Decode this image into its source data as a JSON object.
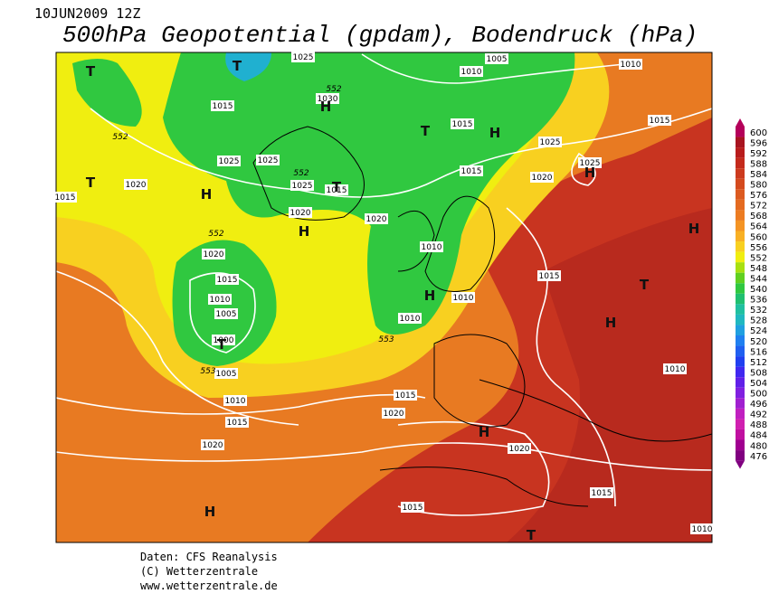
{
  "header": {
    "date": "10JUN2009 12Z",
    "title": "500hPa Geopotential (gpdam), Bodendruck (hPa)"
  },
  "colorbar": {
    "labels": [
      600,
      596,
      592,
      588,
      584,
      580,
      576,
      572,
      568,
      564,
      560,
      556,
      552,
      548,
      544,
      540,
      536,
      532,
      528,
      524,
      520,
      516,
      512,
      508,
      504,
      500,
      496,
      492,
      488,
      484,
      480,
      476
    ]
  },
  "map": {
    "pressure_labels": [
      1025,
      1005,
      1010,
      1010,
      1030,
      1015,
      1015,
      1015,
      1025,
      1025,
      1025,
      1025,
      1015,
      1020,
      1015,
      1020,
      1025,
      1015,
      1020,
      1020,
      1010,
      1020,
      1015,
      1015,
      1010,
      1010,
      1005,
      1010,
      1000,
      1005,
      1010,
      1015,
      1010,
      1020,
      1015,
      1020,
      1020,
      1015,
      1015,
      1010
    ],
    "contour_labels": [
      552,
      552,
      552,
      552,
      553,
      553
    ],
    "centers": [
      "T",
      "T",
      "H",
      "T",
      "H",
      "T",
      "H",
      "T",
      "H",
      "H",
      "H",
      "T",
      "H",
      "H",
      "T",
      "H",
      "H",
      "T"
    ]
  },
  "footer": {
    "lines": [
      "Daten: CFS Reanalysis",
      "(C) Wetterzentrale",
      "www.wetterzentrale.de"
    ]
  }
}
